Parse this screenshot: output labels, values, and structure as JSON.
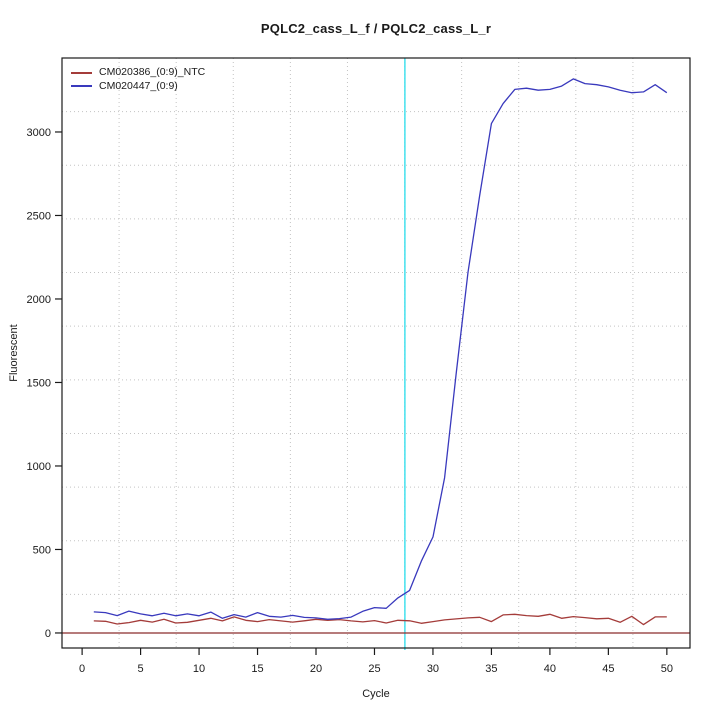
{
  "chart_data": {
    "type": "line",
    "title": "PQLC2_cass_L_f / PQLC2_cass_L_r",
    "xlabel": "Cycle",
    "ylabel": "Fluorescent",
    "x_ticks": [
      0,
      5,
      10,
      15,
      20,
      25,
      30,
      35,
      40,
      45,
      50
    ],
    "y_ticks": [
      0,
      500,
      1000,
      1500,
      2000,
      2500,
      3000
    ],
    "xlim": [
      -1.72,
      51.98
    ],
    "ylim": [
      -90,
      3443
    ],
    "grid": {
      "on": true,
      "interior_lines_x": 10,
      "interior_lines_y": 10,
      "style": "dotted",
      "color": "#c3c3c3"
    },
    "threshold_line": {
      "x": 27.6,
      "color": "#4fe3ef"
    },
    "zero_line": {
      "y": 0,
      "color": "#8b2c2c"
    },
    "legend": {
      "position": "top-left"
    },
    "x": [
      1,
      2,
      3,
      4,
      5,
      6,
      7,
      8,
      9,
      10,
      11,
      12,
      13,
      14,
      15,
      16,
      17,
      18,
      19,
      20,
      21,
      22,
      23,
      24,
      25,
      26,
      27,
      28,
      29,
      30,
      31,
      32,
      33,
      34,
      35,
      36,
      37,
      38,
      39,
      40,
      41,
      42,
      43,
      44,
      45,
      46,
      47,
      48,
      49,
      50
    ],
    "series": [
      {
        "name": "CM020386_(0:9)_NTC",
        "color": "#a43c3a",
        "values": [
          72,
          70,
          54,
          62,
          76,
          65,
          82,
          60,
          64,
          76,
          88,
          72,
          96,
          76,
          68,
          80,
          72,
          65,
          73,
          82,
          76,
          80,
          72,
          66,
          74,
          60,
          76,
          73,
          58,
          68,
          78,
          84,
          90,
          94,
          68,
          108,
          112,
          104,
          100,
          112,
          88,
          98,
          92,
          85,
          88,
          64,
          100,
          50,
          96,
          96
        ]
      },
      {
        "name": "CM020447_(0:9)",
        "color": "#3939bd",
        "values": [
          126,
          122,
          104,
          131,
          114,
          103,
          118,
          103,
          114,
          103,
          125,
          88,
          110,
          95,
          122,
          100,
          95,
          105,
          93,
          90,
          82,
          86,
          95,
          130,
          152,
          148,
          210,
          255,
          430,
          575,
          930,
          1560,
          2160,
          2620,
          3050,
          3170,
          3255,
          3262,
          3250,
          3255,
          3275,
          3318,
          3290,
          3283,
          3270,
          3250,
          3235,
          3240,
          3283,
          3235
        ]
      }
    ]
  }
}
